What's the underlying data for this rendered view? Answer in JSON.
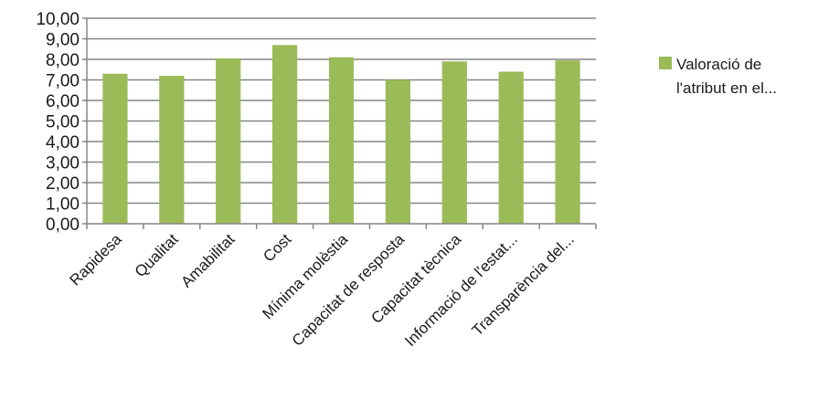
{
  "chart_data": {
    "type": "bar",
    "categories": [
      "Rapidesa",
      "Qualitat",
      "Amabilitat",
      "Cost",
      "Mínima molèstia",
      "Capacitat de resposta",
      "Capacitat tècnica",
      "Informació de l'estat...",
      "Transparència del..."
    ],
    "series": [
      {
        "name": "Valoració de l'atribut en el...",
        "values": [
          7.3,
          7.2,
          8.05,
          8.7,
          8.1,
          7.0,
          7.9,
          7.4,
          7.95
        ],
        "color": "#9bbb59"
      }
    ],
    "yticks": [
      "0,00",
      "1,00",
      "2,00",
      "3,00",
      "4,00",
      "5,00",
      "6,00",
      "7,00",
      "8,00",
      "9,00",
      "10,00"
    ],
    "ylim": [
      0,
      10
    ],
    "grid": true,
    "legend": {
      "position": "right",
      "lines": [
        "Valoració de",
        "l'atribut en el..."
      ]
    },
    "colors": {
      "bar": "#9bbb59",
      "grid": "#868686",
      "axis": "#868686"
    }
  }
}
